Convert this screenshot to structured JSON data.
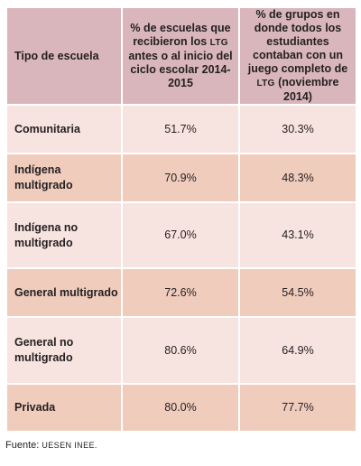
{
  "table": {
    "headers": {
      "col1": "Tipo de escuela",
      "col2_lead": "% de escuelas que recibieron los",
      "col2_abbr": "LTG",
      "col2_tail": "antes o al inicio del ciclo escolar 2014-2015",
      "col3_lead": "% de grupos en donde todos los estudiantes contaban con un juego completo de",
      "col3_abbr": "LTG",
      "col3_tail": "(noviembre 2014)"
    },
    "rows": [
      {
        "label": "Comunitaria",
        "v1": "51.7%",
        "v2": "30.3%"
      },
      {
        "label": "Indígena multigrado",
        "v1": "70.9%",
        "v2": "48.3%"
      },
      {
        "label": "Indígena no multigrado",
        "v1": "67.0%",
        "v2": "43.1%"
      },
      {
        "label": "General multigrado",
        "v1": "72.6%",
        "v2": "54.5%"
      },
      {
        "label": "General no multigrado",
        "v1": "80.6%",
        "v2": "64.9%"
      },
      {
        "label": "Privada",
        "v1": "80.0%",
        "v2": "77.7%"
      }
    ]
  },
  "source": {
    "label": "Fuente:",
    "text": "UESEN INEE."
  },
  "colors": {
    "header_bg": "#d9b6bc",
    "row_light": "#f7e3df",
    "row_dark": "#f0ccbd"
  }
}
